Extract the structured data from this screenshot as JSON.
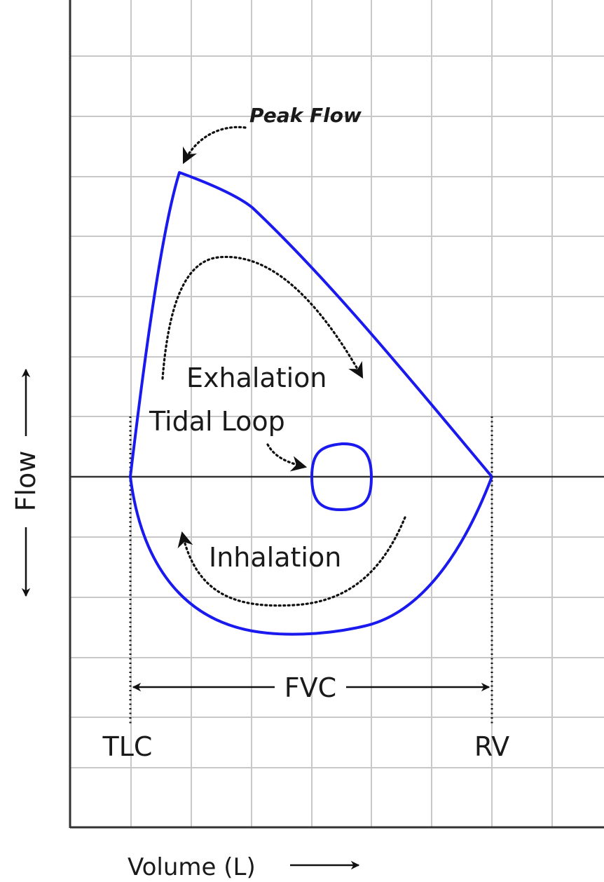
{
  "diagram": {
    "labels": {
      "peak_flow": "Peak Flow",
      "exhalation": "Exhalation",
      "tidal_loop": "Tidal Loop",
      "inhalation": "Inhalation",
      "fvc": "FVC",
      "tlc": "TLC",
      "rv": "RV"
    },
    "axes": {
      "y_label": "Flow",
      "x_label": "Volume (L)"
    },
    "colors": {
      "curve": "#1a1aee",
      "grid": "#c8c8c8",
      "axis": "#333333",
      "annotation": "#111111"
    }
  }
}
